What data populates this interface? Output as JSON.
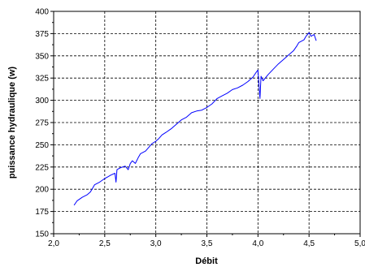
{
  "chart_data": {
    "type": "line",
    "title": "",
    "xlabel": "Débit",
    "ylabel": "puissance hydraulique (w)",
    "xlim": [
      2.0,
      5.0
    ],
    "ylim": [
      150,
      400
    ],
    "x_ticks": [
      2.0,
      2.5,
      3.0,
      3.5,
      4.0,
      4.5,
      5.0
    ],
    "x_tick_labels": [
      "2,0",
      "2,5",
      "3,0",
      "3,5",
      "4,0",
      "4,5",
      "5,0"
    ],
    "y_ticks": [
      150,
      175,
      200,
      225,
      250,
      275,
      300,
      325,
      350,
      375,
      400
    ],
    "y_tick_labels": [
      "150",
      "175",
      "200",
      "225",
      "250",
      "275",
      "300",
      "325",
      "350",
      "375",
      "400"
    ],
    "grid": true,
    "series": [
      {
        "color": "#0000ff",
        "x": [
          2.2,
          2.23,
          2.28,
          2.33,
          2.36,
          2.38,
          2.4,
          2.45,
          2.5,
          2.53,
          2.56,
          2.6,
          2.61,
          2.62,
          2.65,
          2.7,
          2.73,
          2.75,
          2.77,
          2.8,
          2.83,
          2.85,
          2.9,
          2.93,
          2.96,
          3.0,
          3.03,
          3.06,
          3.1,
          3.15,
          3.2,
          3.25,
          3.3,
          3.35,
          3.4,
          3.45,
          3.5,
          3.55,
          3.6,
          3.65,
          3.7,
          3.75,
          3.8,
          3.85,
          3.9,
          3.95,
          3.98,
          4.0,
          4.02,
          4.03,
          4.05,
          4.1,
          4.15,
          4.2,
          4.25,
          4.3,
          4.35,
          4.38,
          4.4,
          4.45,
          4.47,
          4.5,
          4.52,
          4.55,
          4.57
        ],
        "y": [
          182,
          187,
          191,
          194,
          197,
          201,
          205,
          208,
          212,
          214,
          216,
          218,
          208,
          222,
          224,
          226,
          222,
          229,
          232,
          229,
          236,
          240,
          243,
          247,
          251,
          254,
          257,
          261,
          264,
          268,
          273,
          278,
          281,
          286,
          288,
          289,
          292,
          296,
          302,
          305,
          308,
          312,
          314,
          317,
          321,
          326,
          331,
          334,
          302,
          327,
          322,
          329,
          335,
          341,
          346,
          351,
          356,
          361,
          365,
          368,
          372,
          376,
          372,
          374,
          367
        ]
      }
    ]
  }
}
